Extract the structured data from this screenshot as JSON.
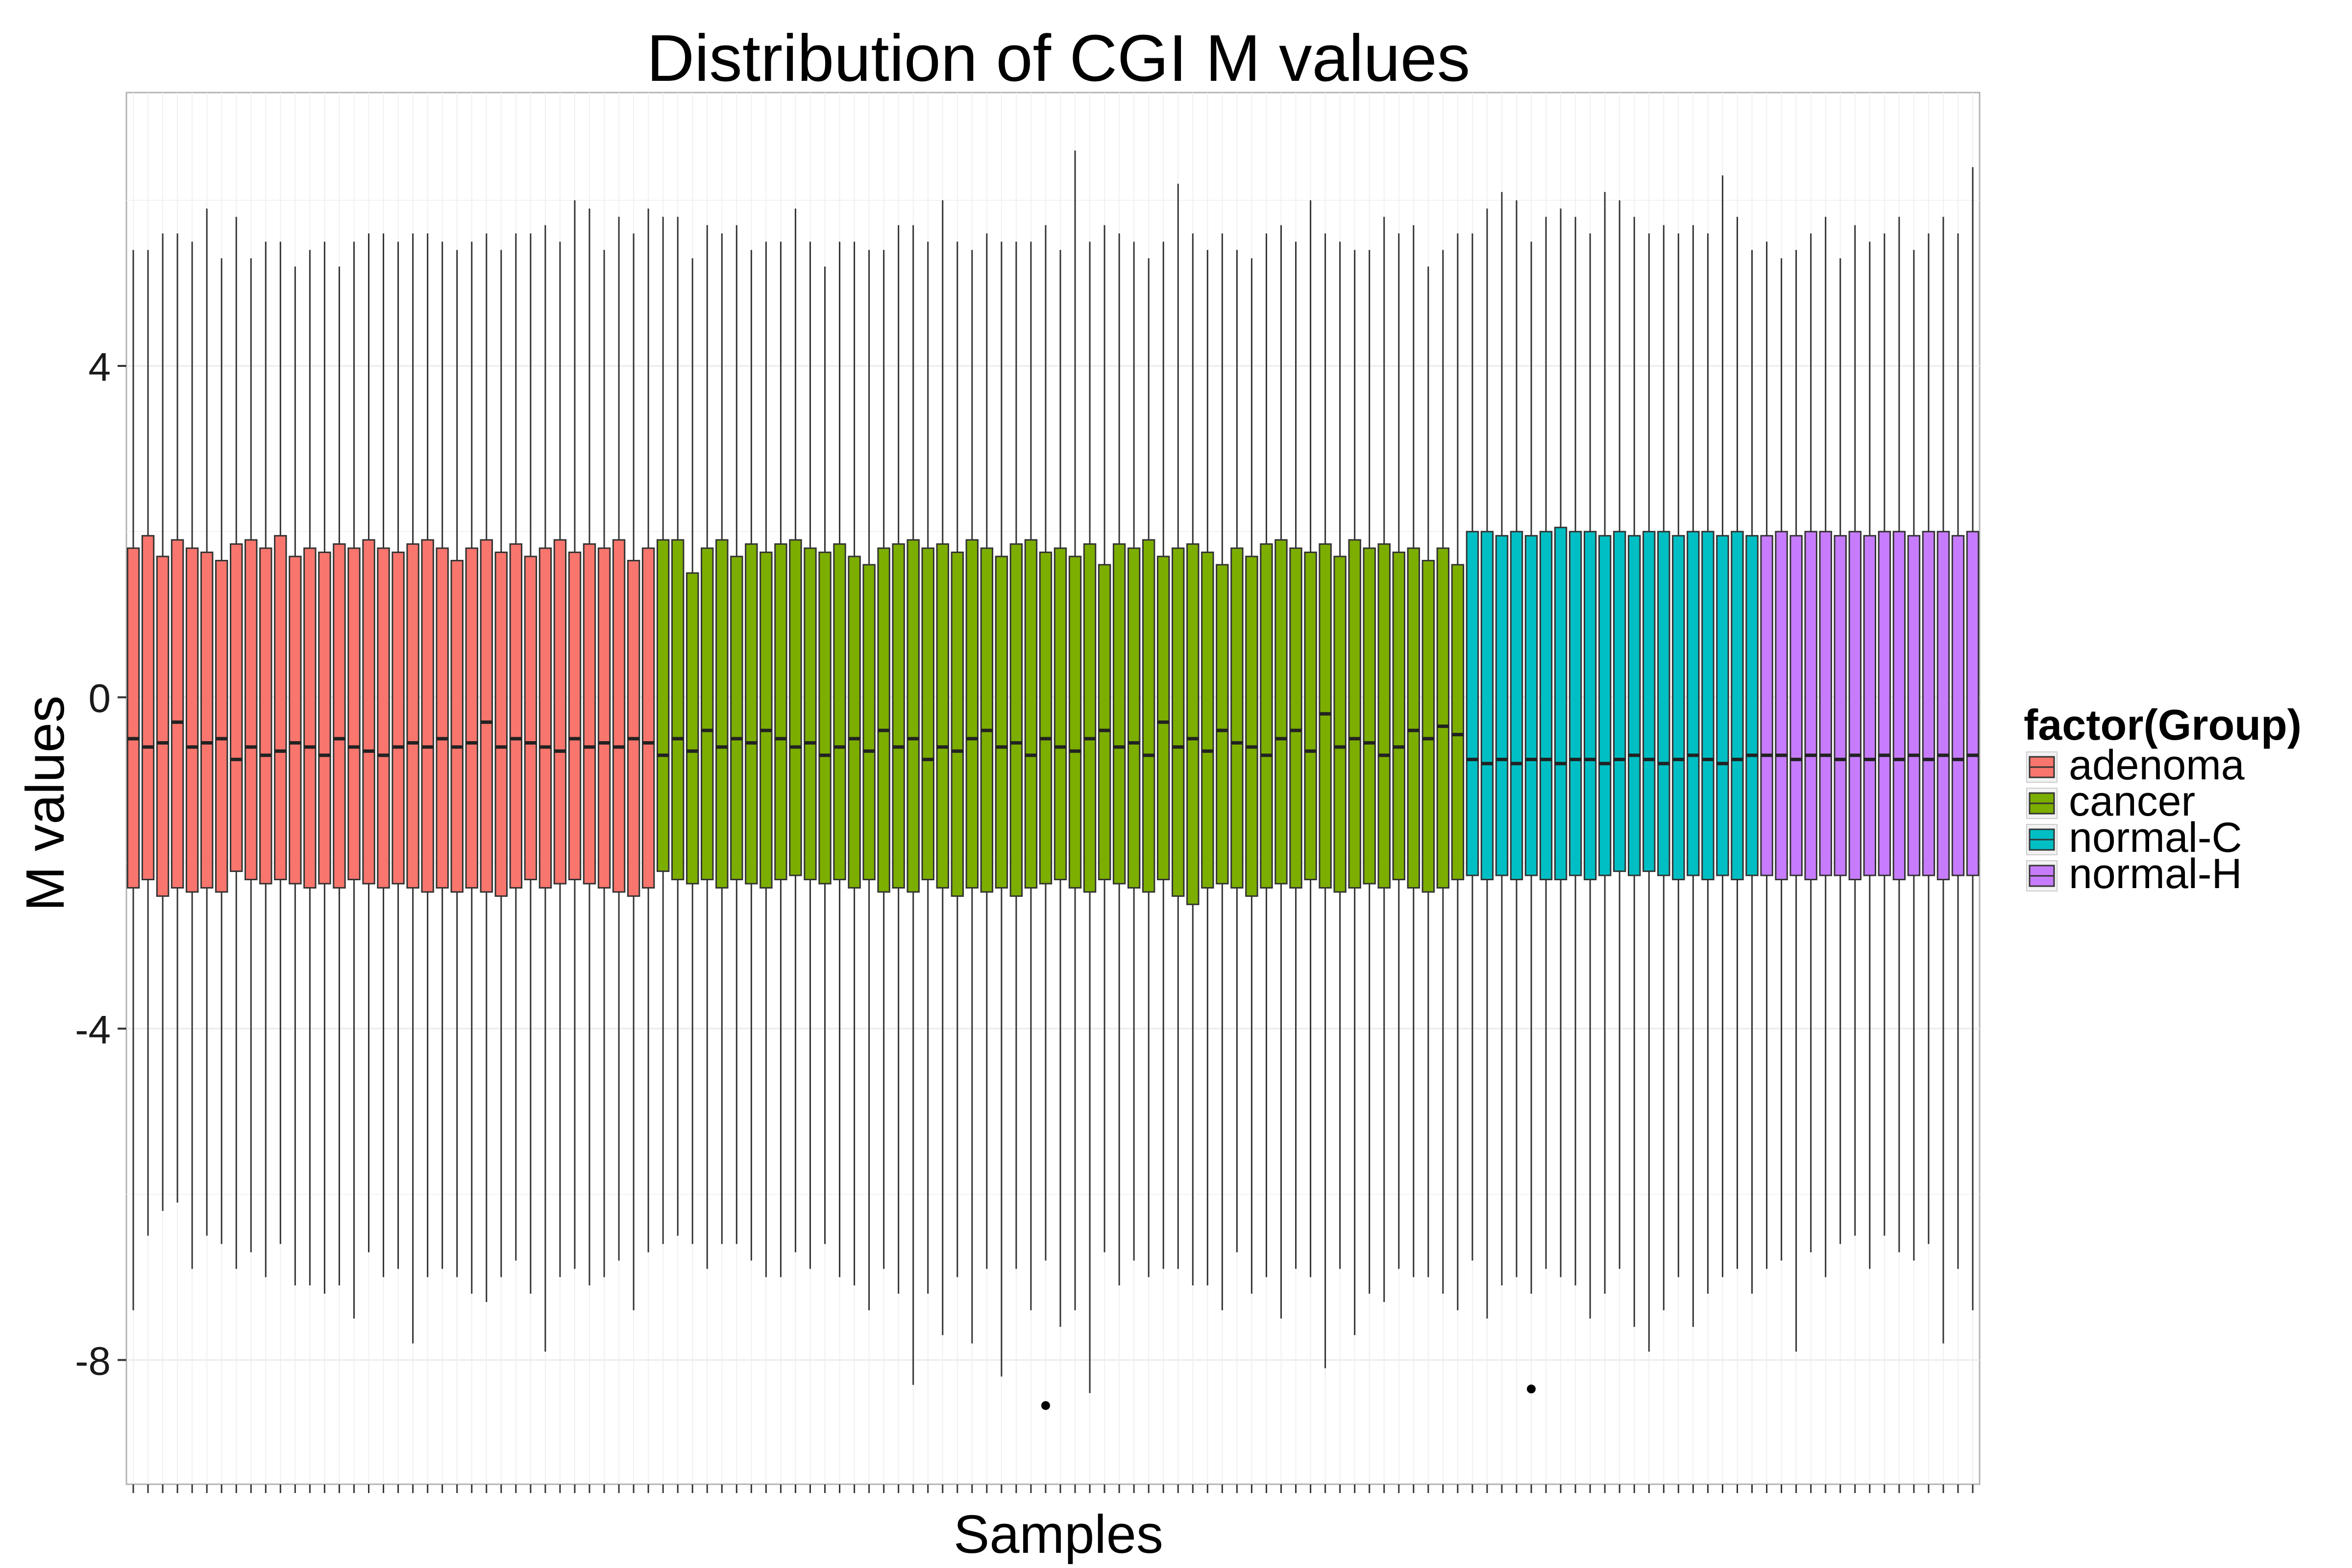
{
  "chart_data": {
    "type": "boxplot",
    "title": "Distribution of CGI M values",
    "xlabel": "Samples",
    "ylabel": "M values",
    "ylim": [
      -9.5,
      7.3
    ],
    "yticks": [
      -8,
      -4,
      0,
      4
    ],
    "ytick_labels": [
      "-8",
      "-4",
      "0",
      "4"
    ],
    "grid": true,
    "legend_position": "right",
    "legend_title": "factor(Group)",
    "groups": [
      {
        "name": "adenoma",
        "color": "#F8766D",
        "count": 36
      },
      {
        "name": "cancer",
        "color": "#7CAE00",
        "count": 55
      },
      {
        "name": "normal-C",
        "color": "#00BFC4",
        "count": 20
      },
      {
        "name": "normal-H",
        "color": "#C77CFF",
        "count": 15
      }
    ],
    "series": [
      {
        "name": "adenoma",
        "q1": [
          -2.3,
          -2.2,
          -2.4,
          -2.3,
          -2.35,
          -2.3,
          -2.35,
          -2.1,
          -2.2,
          -2.25,
          -2.2,
          -2.25,
          -2.3,
          -2.25,
          -2.3,
          -2.2,
          -2.25,
          -2.3,
          -2.25,
          -2.3,
          -2.35,
          -2.3,
          -2.35,
          -2.3,
          -2.35,
          -2.4,
          -2.3,
          -2.2,
          -2.3,
          -2.25,
          -2.2,
          -2.25,
          -2.3,
          -2.35,
          -2.4,
          -2.3
        ],
        "median": [
          -0.5,
          -0.6,
          -0.55,
          -0.3,
          -0.6,
          -0.55,
          -0.5,
          -0.75,
          -0.6,
          -0.7,
          -0.65,
          -0.55,
          -0.6,
          -0.7,
          -0.5,
          -0.6,
          -0.65,
          -0.7,
          -0.6,
          -0.55,
          -0.6,
          -0.5,
          -0.6,
          -0.55,
          -0.3,
          -0.6,
          -0.5,
          -0.55,
          -0.6,
          -0.65,
          -0.5,
          -0.6,
          -0.55,
          -0.6,
          -0.5,
          -0.55
        ],
        "q3": [
          1.8,
          1.95,
          1.7,
          1.9,
          1.8,
          1.75,
          1.65,
          1.85,
          1.9,
          1.8,
          1.95,
          1.7,
          1.8,
          1.75,
          1.85,
          1.8,
          1.9,
          1.8,
          1.75,
          1.85,
          1.9,
          1.8,
          1.65,
          1.8,
          1.9,
          1.75,
          1.85,
          1.7,
          1.8,
          1.9,
          1.75,
          1.85,
          1.8,
          1.9,
          1.65,
          1.8
        ],
        "whisker_low": [
          -7.4,
          -6.5,
          -6.2,
          -6.1,
          -6.9,
          -6.5,
          -6.6,
          -6.9,
          -6.7,
          -7.0,
          -6.6,
          -7.1,
          -7.1,
          -7.2,
          -7.1,
          -7.5,
          -6.7,
          -7.0,
          -6.9,
          -7.8,
          -7.0,
          -6.9,
          -7.0,
          -7.2,
          -7.3,
          -7.0,
          -6.8,
          -7.2,
          -7.9,
          -7.0,
          -6.9,
          -7.1,
          -7.0,
          -6.8,
          -7.4,
          -6.7
        ],
        "whisker_high": [
          5.4,
          5.4,
          5.6,
          5.6,
          5.5,
          5.9,
          5.3,
          5.8,
          5.3,
          5.5,
          5.5,
          5.2,
          5.4,
          5.5,
          5.2,
          5.5,
          5.6,
          5.6,
          5.5,
          5.6,
          5.6,
          5.5,
          5.4,
          5.5,
          5.6,
          5.4,
          5.6,
          5.6,
          5.7,
          5.5,
          6.0,
          5.9,
          5.4,
          5.8,
          5.6,
          5.9
        ]
      },
      {
        "name": "cancer",
        "q1": [
          -2.1,
          -2.2,
          -2.25,
          -2.2,
          -2.3,
          -2.2,
          -2.25,
          -2.3,
          -2.2,
          -2.15,
          -2.2,
          -2.25,
          -2.2,
          -2.3,
          -2.2,
          -2.35,
          -2.3,
          -2.35,
          -2.2,
          -2.3,
          -2.4,
          -2.3,
          -2.35,
          -2.3,
          -2.4,
          -2.3,
          -2.25,
          -2.2,
          -2.3,
          -2.35,
          -2.2,
          -2.25,
          -2.3,
          -2.35,
          -2.2,
          -2.4,
          -2.5,
          -2.3,
          -2.25,
          -2.3,
          -2.4,
          -2.3,
          -2.25,
          -2.3,
          -2.2,
          -2.3,
          -2.35,
          -2.3,
          -2.25,
          -2.3,
          -2.2,
          -2.3,
          -2.35,
          -2.3,
          -2.2
        ],
        "median": [
          -0.7,
          -0.5,
          -0.65,
          -0.4,
          -0.6,
          -0.5,
          -0.55,
          -0.4,
          -0.5,
          -0.6,
          -0.55,
          -0.7,
          -0.6,
          -0.5,
          -0.65,
          -0.4,
          -0.6,
          -0.5,
          -0.75,
          -0.6,
          -0.65,
          -0.5,
          -0.4,
          -0.6,
          -0.55,
          -0.7,
          -0.5,
          -0.6,
          -0.65,
          -0.5,
          -0.4,
          -0.6,
          -0.55,
          -0.7,
          -0.3,
          -0.6,
          -0.5,
          -0.65,
          -0.4,
          -0.55,
          -0.6,
          -0.7,
          -0.5,
          -0.4,
          -0.65,
          -0.2,
          -0.6,
          -0.5,
          -0.55,
          -0.7,
          -0.6,
          -0.4,
          -0.5,
          -0.35,
          -0.45
        ],
        "q3": [
          1.9,
          1.9,
          1.5,
          1.8,
          1.9,
          1.7,
          1.85,
          1.75,
          1.85,
          1.9,
          1.8,
          1.75,
          1.85,
          1.7,
          1.6,
          1.8,
          1.85,
          1.9,
          1.8,
          1.85,
          1.75,
          1.9,
          1.8,
          1.7,
          1.85,
          1.9,
          1.75,
          1.8,
          1.7,
          1.85,
          1.6,
          1.85,
          1.8,
          1.9,
          1.7,
          1.8,
          1.85,
          1.75,
          1.6,
          1.8,
          1.7,
          1.85,
          1.9,
          1.8,
          1.75,
          1.85,
          1.7,
          1.9,
          1.8,
          1.85,
          1.75,
          1.8,
          1.65,
          1.8,
          1.6
        ],
        "whisker_low": [
          -6.6,
          -6.5,
          -6.6,
          -6.9,
          -6.6,
          -6.6,
          -6.8,
          -7.0,
          -7.0,
          -6.7,
          -6.9,
          -6.6,
          -7.0,
          -7.1,
          -7.4,
          -6.9,
          -7.2,
          -8.3,
          -7.2,
          -7.7,
          -7.0,
          -7.8,
          -6.9,
          -8.2,
          -6.9,
          -7.4,
          -6.8,
          -7.6,
          -7.4,
          -8.4,
          -6.7,
          -7.1,
          -6.8,
          -7.0,
          -6.9,
          -6.9,
          -7.1,
          -7.1,
          -7.4,
          -6.7,
          -7.2,
          -7.0,
          -7.5,
          -6.9,
          -7.0,
          -8.1,
          -6.9,
          -7.7,
          -7.2,
          -7.3,
          -6.9,
          -7.0,
          -7.0,
          -7.2,
          -7.4
        ],
        "whisker_high": [
          5.8,
          5.8,
          5.3,
          5.7,
          5.6,
          5.7,
          5.4,
          5.5,
          5.5,
          5.9,
          5.5,
          5.2,
          5.5,
          5.5,
          5.4,
          5.4,
          5.7,
          5.7,
          5.5,
          6.0,
          5.5,
          5.4,
          5.6,
          5.5,
          5.5,
          5.5,
          5.7,
          5.4,
          6.6,
          5.5,
          5.7,
          5.6,
          5.5,
          5.3,
          5.5,
          6.2,
          5.6,
          5.4,
          5.6,
          5.4,
          5.3,
          5.6,
          5.7,
          5.5,
          6.0,
          5.6,
          5.5,
          5.4,
          5.4,
          5.8,
          5.6,
          5.7,
          5.2,
          5.4,
          5.6
        ]
      },
      {
        "name": "normal-C",
        "q1": [
          -2.15,
          -2.2,
          -2.15,
          -2.2,
          -2.15,
          -2.2,
          -2.2,
          -2.15,
          -2.2,
          -2.15,
          -2.1,
          -2.15,
          -2.1,
          -2.15,
          -2.2,
          -2.15,
          -2.2,
          -2.15,
          -2.2,
          -2.15
        ],
        "median": [
          -0.75,
          -0.8,
          -0.75,
          -0.8,
          -0.75,
          -0.75,
          -0.8,
          -0.75,
          -0.75,
          -0.8,
          -0.75,
          -0.7,
          -0.75,
          -0.8,
          -0.75,
          -0.7,
          -0.75,
          -0.8,
          -0.75,
          -0.7
        ],
        "q3": [
          2.0,
          2.0,
          1.95,
          2.0,
          1.95,
          2.0,
          2.05,
          2.0,
          2.0,
          1.95,
          2.0,
          1.95,
          2.0,
          2.0,
          1.95,
          2.0,
          2.0,
          1.95,
          2.0,
          1.95
        ],
        "whisker_low": [
          -6.8,
          -7.5,
          -7.1,
          -7.0,
          -7.2,
          -6.9,
          -7.0,
          -7.1,
          -7.5,
          -7.2,
          -6.9,
          -7.6,
          -7.9,
          -7.4,
          -7.0,
          -7.6,
          -7.2,
          -7.0,
          -6.9,
          -7.2
        ],
        "whisker_high": [
          5.6,
          5.9,
          6.1,
          6.0,
          5.5,
          5.8,
          5.9,
          5.8,
          5.6,
          6.1,
          6.0,
          5.8,
          5.6,
          5.7,
          5.6,
          5.7,
          5.6,
          6.3,
          5.8,
          5.4
        ]
      },
      {
        "name": "normal-H",
        "q1": [
          -2.15,
          -2.2,
          -2.15,
          -2.2,
          -2.15,
          -2.15,
          -2.2,
          -2.15,
          -2.15,
          -2.2,
          -2.15,
          -2.15,
          -2.2,
          -2.15,
          -2.15
        ],
        "median": [
          -0.7,
          -0.7,
          -0.75,
          -0.7,
          -0.7,
          -0.75,
          -0.7,
          -0.75,
          -0.7,
          -0.75,
          -0.7,
          -0.75,
          -0.7,
          -0.75,
          -0.7
        ],
        "q3": [
          1.95,
          2.0,
          1.95,
          2.0,
          2.0,
          1.95,
          2.0,
          1.95,
          2.0,
          2.0,
          1.95,
          2.0,
          2.0,
          1.95,
          2.0
        ],
        "whisker_low": [
          -6.9,
          -6.8,
          -7.9,
          -6.7,
          -7.0,
          -6.6,
          -6.5,
          -6.9,
          -6.5,
          -6.7,
          -6.8,
          -6.6,
          -7.8,
          -6.9,
          -7.4
        ],
        "whisker_high": [
          5.5,
          5.3,
          5.4,
          5.6,
          5.8,
          5.3,
          5.7,
          5.5,
          5.6,
          5.8,
          5.4,
          5.6,
          5.8,
          5.6,
          6.4
        ]
      }
    ],
    "outliers": [
      {
        "series": "cancer",
        "sample": 27,
        "value": -8.55
      },
      {
        "series": "normal-C",
        "sample": 5,
        "value": -8.35
      }
    ]
  }
}
